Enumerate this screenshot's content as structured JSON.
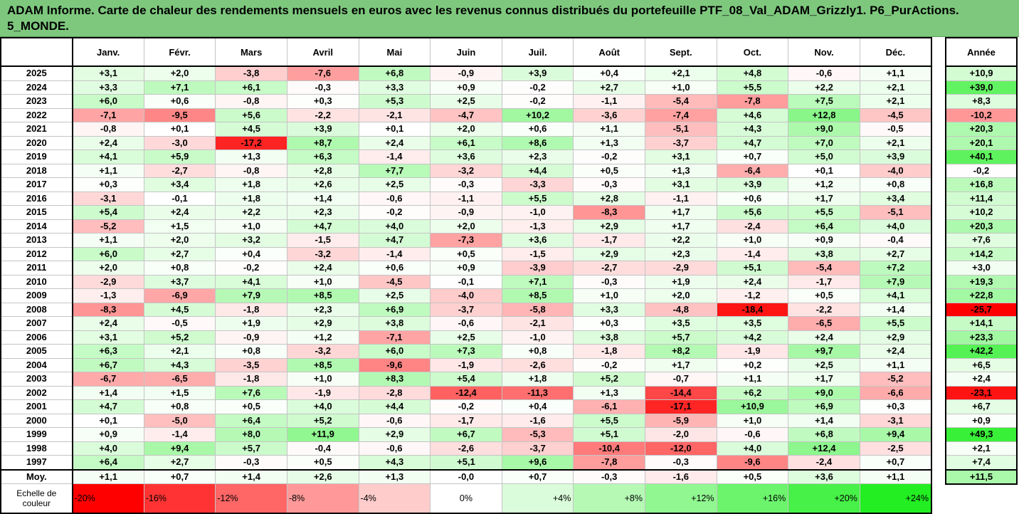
{
  "title": "ADAM Informe. Carte de chaleur des rendements mensuels en euros avec les revenus connus distribués du portefeuille PTF_08_Val_ADAM_Grizzly1. P6_PurActions. 5_MONDE.",
  "chart_data": {
    "type": "heatmap",
    "title": "ADAM Informe. Carte de chaleur des rendements mensuels en euros avec les revenus connus distribués du portefeuille PTF_08_Val_ADAM_Grizzly1. P6_PurActions. 5_MONDE.",
    "columns": [
      "Janv.",
      "Févr.",
      "Mars",
      "Avril",
      "Mai",
      "Juin",
      "Juil.",
      "Août",
      "Sept.",
      "Oct.",
      "Nov.",
      "Déc."
    ],
    "annual_label": "Année",
    "rows": [
      {
        "year": "2025",
        "values": [
          "+3,1",
          "+2,0",
          "-3,8",
          "-7,6",
          "+6,8",
          "-0,9",
          "+3,9",
          "+0,4",
          "+2,1",
          "+4,8",
          "-0,6",
          "+1,1"
        ],
        "annual": "+10,9"
      },
      {
        "year": "2024",
        "values": [
          "+3,3",
          "+7,1",
          "+6,1",
          "-0,3",
          "+3,3",
          "+0,9",
          "-0,2",
          "+2,7",
          "+1,0",
          "+5,5",
          "+2,2",
          "+2,1"
        ],
        "annual": "+39,0"
      },
      {
        "year": "2023",
        "values": [
          "+6,0",
          "+0,6",
          "-0,8",
          "+0,3",
          "+5,3",
          "+2,5",
          "-0,2",
          "-1,1",
          "-5,4",
          "-7,8",
          "+7,5",
          "+2,1"
        ],
        "annual": "+8,3"
      },
      {
        "year": "2022",
        "values": [
          "-7,1",
          "-9,5",
          "+5,6",
          "-2,2",
          "-2,1",
          "-4,7",
          "+10,2",
          "-3,6",
          "-7,4",
          "+4,6",
          "+12,8",
          "-4,5"
        ],
        "annual": "-10,2"
      },
      {
        "year": "2021",
        "values": [
          "-0,8",
          "+0,1",
          "+4,5",
          "+3,9",
          "+0,1",
          "+2,0",
          "+0,6",
          "+1,1",
          "-5,1",
          "+4,3",
          "+9,0",
          "-0,5"
        ],
        "annual": "+20,3"
      },
      {
        "year": "2020",
        "values": [
          "+2,4",
          "-3,0",
          "-17,2",
          "+8,7",
          "+2,4",
          "+6,1",
          "+8,6",
          "+1,3",
          "-3,7",
          "+4,7",
          "+7,0",
          "+2,1"
        ],
        "annual": "+20,1"
      },
      {
        "year": "2019",
        "values": [
          "+4,1",
          "+5,9",
          "+1,3",
          "+6,3",
          "-1,4",
          "+3,6",
          "+2,3",
          "-0,2",
          "+3,1",
          "+0,7",
          "+5,0",
          "+3,9"
        ],
        "annual": "+40,1"
      },
      {
        "year": "2018",
        "values": [
          "+1,1",
          "-2,7",
          "-0,8",
          "+2,8",
          "+7,7",
          "-3,2",
          "+4,4",
          "+0,5",
          "+1,3",
          "-6,4",
          "+0,1",
          "-4,0"
        ],
        "annual": "-0,2"
      },
      {
        "year": "2017",
        "values": [
          "+0,3",
          "+3,4",
          "+1,8",
          "+2,6",
          "+2,5",
          "-0,3",
          "-3,3",
          "-0,3",
          "+3,1",
          "+3,9",
          "+1,2",
          "+0,8"
        ],
        "annual": "+16,8"
      },
      {
        "year": "2016",
        "values": [
          "-3,1",
          "-0,1",
          "+1,8",
          "+1,4",
          "-0,6",
          "-1,1",
          "+5,5",
          "+2,8",
          "-1,1",
          "+0,6",
          "+1,7",
          "+3,4"
        ],
        "annual": "+11,4"
      },
      {
        "year": "2015",
        "values": [
          "+5,4",
          "+2,4",
          "+2,2",
          "+2,3",
          "-0,2",
          "-0,9",
          "-1,0",
          "-8,3",
          "+1,7",
          "+5,6",
          "+5,5",
          "-5,1"
        ],
        "annual": "+10,2"
      },
      {
        "year": "2014",
        "values": [
          "-5,2",
          "+1,5",
          "+1,0",
          "+4,7",
          "+4,0",
          "+2,0",
          "-1,3",
          "+2,9",
          "+1,7",
          "-2,4",
          "+6,4",
          "+4,0"
        ],
        "annual": "+20,3"
      },
      {
        "year": "2013",
        "values": [
          "+1,1",
          "+2,0",
          "+3,2",
          "-1,5",
          "+4,7",
          "-7,3",
          "+3,6",
          "-1,7",
          "+2,2",
          "+1,0",
          "+0,9",
          "-0,4"
        ],
        "annual": "+7,6"
      },
      {
        "year": "2012",
        "values": [
          "+6,0",
          "+2,7",
          "+0,4",
          "-3,2",
          "-1,4",
          "+0,5",
          "-1,5",
          "+2,9",
          "+2,3",
          "-1,4",
          "+3,8",
          "+2,7"
        ],
        "annual": "+14,2"
      },
      {
        "year": "2011",
        "values": [
          "+2,0",
          "+0,8",
          "-0,2",
          "+2,4",
          "+0,6",
          "+0,9",
          "-3,9",
          "-2,7",
          "-2,9",
          "+5,1",
          "-5,4",
          "+7,2"
        ],
        "annual": "+3,0"
      },
      {
        "year": "2010",
        "values": [
          "-2,9",
          "+3,7",
          "+4,1",
          "+1,0",
          "-4,5",
          "-0,1",
          "+7,1",
          "-0,3",
          "+1,9",
          "+2,4",
          "-1,7",
          "+7,9"
        ],
        "annual": "+19,3"
      },
      {
        "year": "2009",
        "values": [
          "-1,3",
          "-6,9",
          "+7,9",
          "+8,5",
          "+2,5",
          "-4,0",
          "+8,5",
          "+1,0",
          "+2,0",
          "-1,2",
          "+0,5",
          "+4,1"
        ],
        "annual": "+22,8"
      },
      {
        "year": "2008",
        "values": [
          "-8,3",
          "+4,5",
          "-1,8",
          "+2,3",
          "+6,9",
          "-3,7",
          "-5,8",
          "+3,3",
          "-4,8",
          "-18,4",
          "-2,2",
          "+1,4"
        ],
        "annual": "-25,7"
      },
      {
        "year": "2007",
        "values": [
          "+2,4",
          "-0,5",
          "+1,9",
          "+2,9",
          "+3,8",
          "-0,6",
          "-2,1",
          "+0,3",
          "+3,5",
          "+3,5",
          "-6,5",
          "+5,5"
        ],
        "annual": "+14,1"
      },
      {
        "year": "2006",
        "values": [
          "+3,1",
          "+5,2",
          "-0,9",
          "+1,2",
          "-7,1",
          "+2,5",
          "-1,0",
          "+3,8",
          "+5,7",
          "+4,2",
          "+2,4",
          "+2,9"
        ],
        "annual": "+23,3"
      },
      {
        "year": "2005",
        "values": [
          "+6,3",
          "+2,1",
          "+0,8",
          "-3,2",
          "+6,0",
          "+7,3",
          "+0,8",
          "-1,8",
          "+8,2",
          "-1,9",
          "+9,7",
          "+2,4"
        ],
        "annual": "+42,2"
      },
      {
        "year": "2004",
        "values": [
          "+6,7",
          "+4,3",
          "-3,5",
          "+8,5",
          "-9,6",
          "-1,9",
          "-2,6",
          "-0,2",
          "+1,7",
          "+0,2",
          "+2,5",
          "+1,1"
        ],
        "annual": "+6,5"
      },
      {
        "year": "2003",
        "values": [
          "-6,7",
          "-6,5",
          "-1,8",
          "+1,0",
          "+8,3",
          "+5,4",
          "+1,8",
          "+5,2",
          "-0,7",
          "+1,1",
          "+1,7",
          "-5,2"
        ],
        "annual": "+2,4"
      },
      {
        "year": "2002",
        "values": [
          "+1,4",
          "+1,5",
          "+7,6",
          "-1,9",
          "-2,8",
          "-12,4",
          "-11,3",
          "+1,3",
          "-14,4",
          "+6,2",
          "+9,0",
          "-6,6"
        ],
        "annual": "-23,1"
      },
      {
        "year": "2001",
        "values": [
          "+4,7",
          "+0,8",
          "+0,5",
          "+4,0",
          "+4,4",
          "-0,2",
          "+0,4",
          "-6,1",
          "-17,1",
          "+10,9",
          "+6,9",
          "+0,3"
        ],
        "annual": "+6,7"
      },
      {
        "year": "2000",
        "values": [
          "+0,1",
          "-5,0",
          "+6,4",
          "+5,2",
          "-0,6",
          "-1,7",
          "-1,6",
          "+5,5",
          "-5,9",
          "+1,0",
          "+1,4",
          "-3,1"
        ],
        "annual": "+0,9"
      },
      {
        "year": "1999",
        "values": [
          "+0,9",
          "-1,4",
          "+8,0",
          "+11,9",
          "+2,9",
          "+6,7",
          "-5,3",
          "+5,1",
          "-2,0",
          "-0,6",
          "+6,8",
          "+9,4"
        ],
        "annual": "+49,3"
      },
      {
        "year": "1998",
        "values": [
          "+4,0",
          "+9,4",
          "+5,7",
          "-0,4",
          "-0,6",
          "-2,6",
          "-3,7",
          "-10,4",
          "-12,0",
          "+4,0",
          "+12,4",
          "-2,5"
        ],
        "annual": "+2,1"
      },
      {
        "year": "1997",
        "values": [
          "+6,4",
          "+2,7",
          "-0,3",
          "+0,5",
          "+4,3",
          "+5,1",
          "+9,6",
          "-7,8",
          "-0,3",
          "-9,6",
          "-2,4",
          "+0,7"
        ],
        "annual": "+7,4"
      }
    ],
    "average": {
      "label": "Moy.",
      "values": [
        "+1,1",
        "+0,7",
        "+1,4",
        "+2,6",
        "+1,3",
        "-0,0",
        "+0,7",
        "-0,3",
        "-1,6",
        "+0,5",
        "+3,6",
        "+1,1"
      ],
      "annual": "+11,5"
    },
    "scale": {
      "label": "Echelle de couleur",
      "steps": [
        "-20%",
        "-16%",
        "-12%",
        "-8%",
        "-4%",
        "0%",
        "+4%",
        "+8%",
        "+12%",
        "+16%",
        "+20%",
        "+24%"
      ],
      "min": -20,
      "max": 24
    },
    "colors": {
      "negative": "#ff0000",
      "neutral": "#ffffff",
      "positive": "#22ee22",
      "title_bg": "#7ec87e"
    }
  }
}
